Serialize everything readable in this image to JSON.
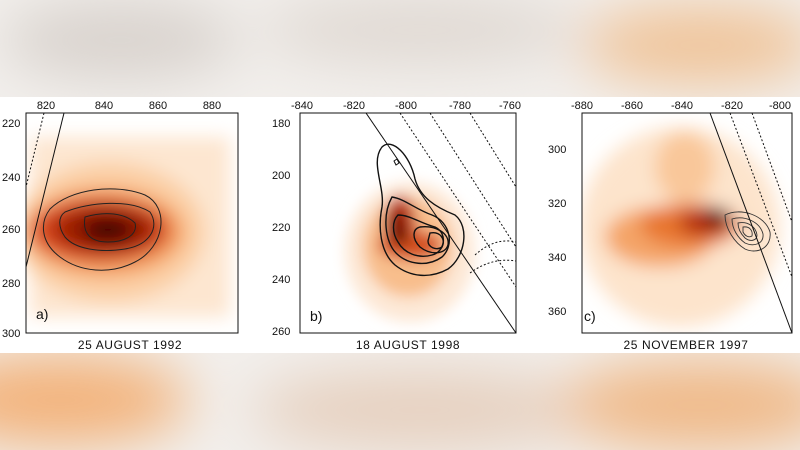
{
  "panels": [
    {
      "letter": "a)",
      "title": "25 AUGUST 1992",
      "x_ticks": [
        "820",
        "840",
        "860",
        "880"
      ],
      "y_ticks": [
        "220",
        "240",
        "260",
        "280",
        "300"
      ]
    },
    {
      "letter": "b)",
      "title": "18 AUGUST 1998",
      "x_ticks": [
        "-840",
        "-820",
        "-800",
        "-780",
        "-760"
      ],
      "y_ticks": [
        "180",
        "200",
        "220",
        "240",
        "260"
      ]
    },
    {
      "letter": "c)",
      "title": "25 NOVEMBER 1997",
      "x_ticks": [
        "-880",
        "-860",
        "-840",
        "-820",
        "-800"
      ],
      "y_ticks": [
        "300",
        "320",
        "340",
        "360"
      ]
    }
  ],
  "colors": {
    "dark": "#1a0000",
    "deep_red": "#8b1a00",
    "orange": "#e07020",
    "light": "#fbd6b0"
  }
}
